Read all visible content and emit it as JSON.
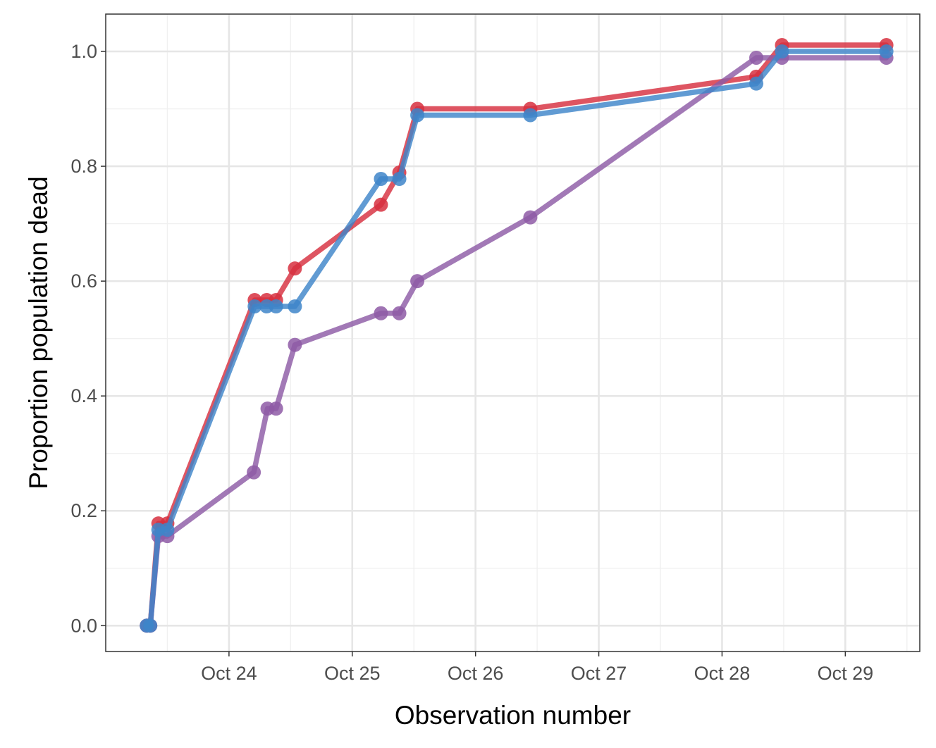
{
  "chart_data": {
    "type": "line",
    "title": "",
    "xlabel": "Observation number",
    "ylabel": "Proportion population dead",
    "x_type": "date",
    "xlim": [
      "2023-10-23 00:00",
      "2023-10-29 14:30"
    ],
    "ylim": [
      -0.045,
      1.065
    ],
    "x_ticks": [
      {
        "date": "2023-10-24",
        "label": "Oct 24"
      },
      {
        "date": "2023-10-25",
        "label": "Oct 25"
      },
      {
        "date": "2023-10-26",
        "label": "Oct 26"
      },
      {
        "date": "2023-10-27",
        "label": "Oct 27"
      },
      {
        "date": "2023-10-28",
        "label": "Oct 28"
      },
      {
        "date": "2023-10-29",
        "label": "Oct 29"
      }
    ],
    "y_ticks": [
      {
        "value": 0.0,
        "label": "0.0"
      },
      {
        "value": 0.2,
        "label": "0.2"
      },
      {
        "value": 0.4,
        "label": "0.4"
      },
      {
        "value": 0.6,
        "label": "0.6"
      },
      {
        "value": 0.8,
        "label": "0.8"
      },
      {
        "value": 1.0,
        "label": "1.0"
      }
    ],
    "grid": true,
    "legend": "none",
    "series": [
      {
        "color": "#d7303f",
        "points": [
          {
            "x": "2023-10-23 08:00",
            "y": 0.0
          },
          {
            "x": "2023-10-23 08:40",
            "y": 0.0
          },
          {
            "x": "2023-10-23 10:15",
            "y": 0.178
          },
          {
            "x": "2023-10-23 12:00",
            "y": 0.178
          },
          {
            "x": "2023-10-24 05:00",
            "y": 0.567
          },
          {
            "x": "2023-10-24 07:20",
            "y": 0.567
          },
          {
            "x": "2023-10-24 09:10",
            "y": 0.567
          },
          {
            "x": "2023-10-24 12:50",
            "y": 0.622
          },
          {
            "x": "2023-10-25 05:35",
            "y": 0.733
          },
          {
            "x": "2023-10-25 09:10",
            "y": 0.789
          },
          {
            "x": "2023-10-25 12:40",
            "y": 0.9
          },
          {
            "x": "2023-10-26 10:40",
            "y": 0.9
          },
          {
            "x": "2023-10-28 06:40",
            "y": 0.956
          },
          {
            "x": "2023-10-28 11:40",
            "y": 1.011
          },
          {
            "x": "2023-10-29 08:00",
            "y": 1.011
          }
        ]
      },
      {
        "color": "#8e5ba6",
        "points": [
          {
            "x": "2023-10-23 08:00",
            "y": 0.0
          },
          {
            "x": "2023-10-23 08:40",
            "y": 0.0
          },
          {
            "x": "2023-10-23 10:15",
            "y": 0.156
          },
          {
            "x": "2023-10-23 12:00",
            "y": 0.156
          },
          {
            "x": "2023-10-24 04:50",
            "y": 0.267
          },
          {
            "x": "2023-10-24 07:30",
            "y": 0.378
          },
          {
            "x": "2023-10-24 09:10",
            "y": 0.378
          },
          {
            "x": "2023-10-24 12:50",
            "y": 0.489
          },
          {
            "x": "2023-10-25 05:35",
            "y": 0.544
          },
          {
            "x": "2023-10-25 09:10",
            "y": 0.544
          },
          {
            "x": "2023-10-25 12:40",
            "y": 0.6
          },
          {
            "x": "2023-10-26 10:40",
            "y": 0.711
          },
          {
            "x": "2023-10-28 06:40",
            "y": 0.989
          },
          {
            "x": "2023-10-28 11:40",
            "y": 0.989
          },
          {
            "x": "2023-10-29 08:00",
            "y": 0.989
          }
        ]
      },
      {
        "color": "#3e85c9",
        "points": [
          {
            "x": "2023-10-23 08:00",
            "y": 0.0
          },
          {
            "x": "2023-10-23 08:40",
            "y": 0.0
          },
          {
            "x": "2023-10-23 10:15",
            "y": 0.167
          },
          {
            "x": "2023-10-23 12:00",
            "y": 0.167
          },
          {
            "x": "2023-10-24 05:00",
            "y": 0.556
          },
          {
            "x": "2023-10-24 07:20",
            "y": 0.556
          },
          {
            "x": "2023-10-24 09:10",
            "y": 0.556
          },
          {
            "x": "2023-10-24 12:50",
            "y": 0.556
          },
          {
            "x": "2023-10-25 05:35",
            "y": 0.778
          },
          {
            "x": "2023-10-25 09:10",
            "y": 0.778
          },
          {
            "x": "2023-10-25 12:40",
            "y": 0.889
          },
          {
            "x": "2023-10-26 10:40",
            "y": 0.889
          },
          {
            "x": "2023-10-28 06:40",
            "y": 0.944
          },
          {
            "x": "2023-10-28 11:40",
            "y": 1.0
          },
          {
            "x": "2023-10-29 08:00",
            "y": 1.0
          }
        ]
      }
    ]
  }
}
